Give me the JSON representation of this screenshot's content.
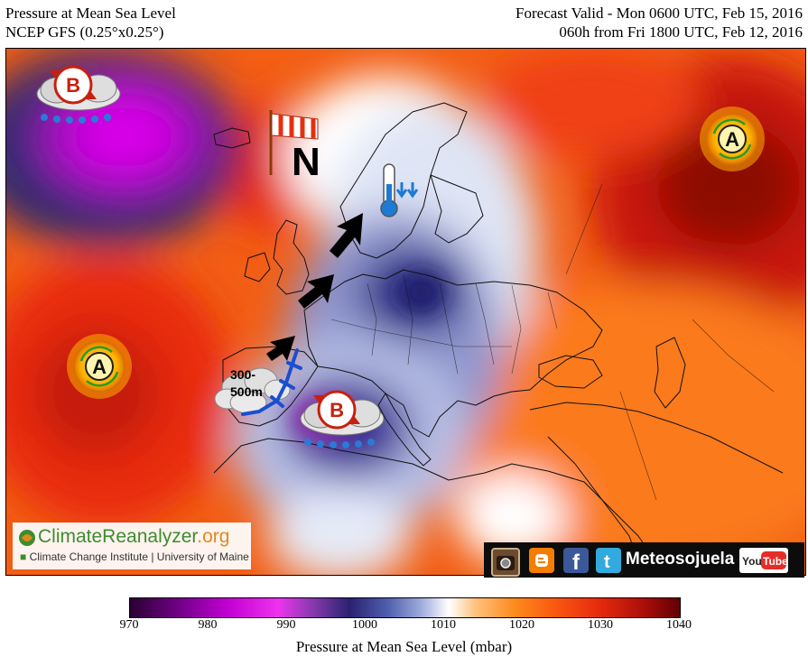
{
  "header": {
    "title": "Pressure at Mean Sea Level",
    "model": "NCEP GFS (0.25°x0.25°)",
    "valid": "Forecast Valid - Mon 0600 UTC, Feb 15, 2016",
    "run": "060h from Fri 1800 UTC, Feb 12, 2016"
  },
  "map": {
    "highs": [
      {
        "symbol": "A"
      },
      {
        "symbol": "A"
      }
    ],
    "lows": [
      {
        "symbol": "B"
      },
      {
        "symbol": "B"
      }
    ],
    "wind_label": "N",
    "altitude_label_1": "300-",
    "altitude_label_2": "500m"
  },
  "logo": {
    "name_main": "ClimateReanalyzer",
    "name_tld": ".org",
    "subtitle": "Climate Change Institute | University of Maine"
  },
  "social": {
    "name": "Meteosojuela",
    "youtube_label": "YouTube"
  },
  "colorbar": {
    "ticks": [
      "970",
      "980",
      "990",
      "1000",
      "1010",
      "1020",
      "1030",
      "1040"
    ],
    "label": "Pressure at Mean Sea Level (mbar)",
    "min": 970,
    "max": 1040
  },
  "colors": {
    "high_pressure": "#e8240c",
    "low_pressure": "#3a3a92",
    "deep_low": "#c600e0",
    "brand_green": "#3c8d2f",
    "brand_orange": "#e08a1e"
  }
}
